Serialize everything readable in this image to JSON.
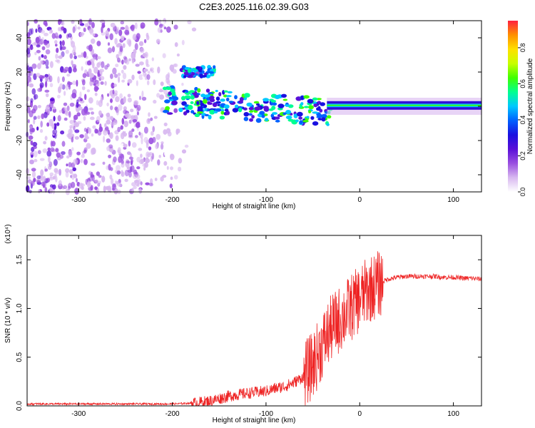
{
  "figure": {
    "title": "C2E3.2025.116.02.39.G03"
  },
  "chart_data": [
    {
      "type": "heatmap",
      "name": "spectrogram",
      "xlabel": "Height of straight line (km)",
      "ylabel": "Frequency (Hz)",
      "xlim": [
        -355,
        130
      ],
      "ylim": [
        -50,
        50
      ],
      "x_ticks": [
        -300,
        -200,
        -100,
        0,
        100
      ],
      "y_ticks": [
        -40,
        -20,
        0,
        20,
        40
      ],
      "colorbar": {
        "label": "Normalized spectral amplitude",
        "range": [
          0,
          0.95
        ],
        "ticks": [
          "0.0",
          "0.2",
          "0.4",
          "0.6",
          "0.8"
        ],
        "tick_values": [
          0,
          0.2,
          0.4,
          0.6,
          0.8
        ],
        "colors": [
          "#ffffff",
          "#d8b8f0",
          "#9a4fe0",
          "#5a10d8",
          "#1a10e0",
          "#0060ff",
          "#00c8ff",
          "#00ff90",
          "#40ff00",
          "#c8ff00",
          "#ffe000",
          "#ff9000",
          "#ff2040"
        ]
      },
      "features": [
        {
          "label": "noise",
          "x": [
            -355,
            -175
          ],
          "y": [
            -50,
            50
          ],
          "amp": 0.25
        },
        {
          "label": "upper-band",
          "x": [
            -190,
            -155
          ],
          "y": [
            17,
            23
          ],
          "amp": 0.45
        },
        {
          "label": "main-band",
          "x": [
            -210,
            -30
          ],
          "y": [
            -8,
            8
          ],
          "amp": 0.5
        },
        {
          "label": "tone",
          "x": [
            -35,
            130
          ],
          "y": [
            -1,
            3
          ],
          "amp": 0.6
        }
      ]
    },
    {
      "type": "line",
      "name": "snr",
      "xlabel": "Height of straight line (km)",
      "ylabel": "SNR (10 * v/v)",
      "multiplier": "(x10⁴)",
      "xlim": [
        -355,
        130
      ],
      "ylim": [
        0,
        1.75
      ],
      "x_ticks": [
        -300,
        -200,
        -100,
        0,
        100
      ],
      "y_ticks": [
        0,
        0.5,
        1.0,
        1.5
      ],
      "y_tick_labels": [
        "0.0",
        "0.5",
        "1.0",
        "1.5"
      ],
      "color": "#ee2222",
      "series": [
        {
          "x": [
            -355,
            -300,
            -250,
            -200,
            -175,
            -160,
            -140,
            -120,
            -100,
            -90,
            -80,
            -70,
            -60,
            -50,
            -45,
            -40,
            -35,
            -30,
            -25,
            -20,
            -15,
            -10,
            -5,
            0,
            5,
            10,
            15,
            20,
            25,
            30,
            40,
            50,
            60,
            70,
            80,
            90,
            100,
            110,
            120,
            130
          ],
          "y": [
            0.02,
            0.02,
            0.02,
            0.02,
            0.03,
            0.05,
            0.1,
            0.13,
            0.15,
            0.18,
            0.2,
            0.24,
            0.3,
            0.42,
            0.52,
            0.62,
            0.72,
            0.8,
            0.85,
            0.9,
            0.95,
            1.0,
            1.05,
            1.1,
            1.15,
            1.2,
            1.22,
            1.25,
            1.28,
            1.3,
            1.32,
            1.33,
            1.33,
            1.33,
            1.33,
            1.32,
            1.32,
            1.31,
            1.31,
            1.3
          ]
        }
      ]
    }
  ]
}
